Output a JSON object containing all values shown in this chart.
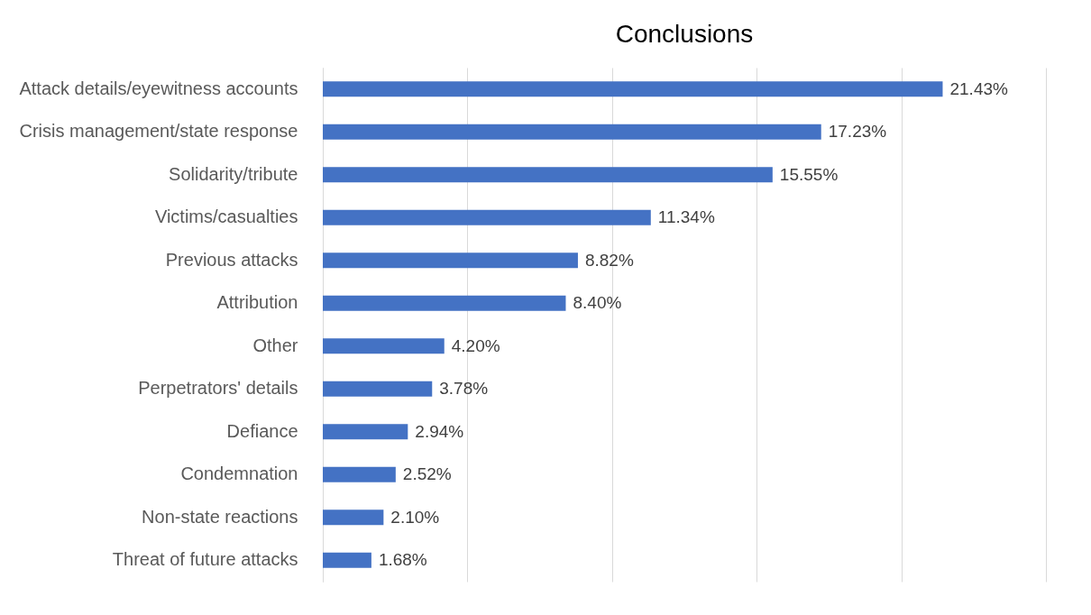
{
  "chart_data": {
    "type": "bar",
    "orientation": "horizontal",
    "title": "Conclusions",
    "categories": [
      "Attack details/eyewitness accounts",
      "Crisis management/state response",
      "Solidarity/tribute",
      "Victims/casualties",
      "Previous attacks",
      "Attribution",
      "Other",
      "Perpetrators' details",
      "Defiance",
      "Condemnation",
      "Non-state reactions",
      "Threat of future attacks"
    ],
    "values": [
      21.43,
      17.23,
      15.55,
      11.34,
      8.82,
      8.4,
      4.2,
      3.78,
      2.94,
      2.52,
      2.1,
      1.68
    ],
    "value_labels": [
      "21.43%",
      "17.23%",
      "15.55%",
      "11.34%",
      "8.82%",
      "8.40%",
      "4.20%",
      "3.78%",
      "2.94%",
      "2.52%",
      "2.10%",
      "1.68%"
    ],
    "color": "#4472c4",
    "xlim": [
      0,
      25
    ],
    "xticks": [
      {
        "value": 0,
        "label": null
      },
      {
        "value": 5,
        "label": null
      },
      {
        "value": 10,
        "label": null
      },
      {
        "value": 15,
        "label": null
      },
      {
        "value": 20,
        "label": null
      },
      {
        "value": 25,
        "label": null
      }
    ],
    "grid": "x",
    "tick_labels": "y"
  }
}
